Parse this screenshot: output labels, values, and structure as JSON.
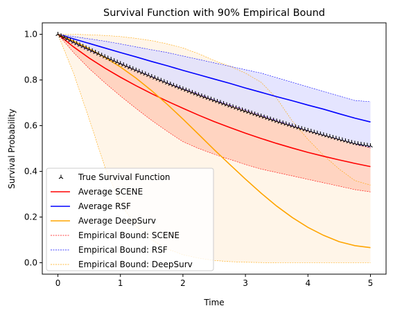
{
  "chart_data": {
    "type": "line",
    "title": "Survival Function with 90% Empirical Bound",
    "xlabel": "Time",
    "ylabel": "Survival Probability",
    "xlim": [
      -0.25,
      5.25
    ],
    "ylim": [
      -0.05,
      1.05
    ],
    "xticks": [
      "0",
      "1",
      "2",
      "3",
      "4",
      "5"
    ],
    "yticks": [
      "0.0",
      "0.2",
      "0.4",
      "0.6",
      "0.8",
      "1.0"
    ],
    "grid": false,
    "legend_position": "lower-left",
    "x": [
      0,
      0.25,
      0.5,
      0.75,
      1,
      1.25,
      1.5,
      1.75,
      2,
      2.25,
      2.5,
      2.75,
      3,
      3.25,
      3.5,
      3.75,
      4,
      4.25,
      4.5,
      4.75,
      5
    ],
    "series": [
      {
        "name": "True Survival Function",
        "style": "marker",
        "color": "#000000",
        "values": [
          1.0,
          0.966,
          0.934,
          0.902,
          0.872,
          0.843,
          0.815,
          0.787,
          0.761,
          0.735,
          0.711,
          0.687,
          0.664,
          0.642,
          0.62,
          0.599,
          0.579,
          0.56,
          0.541,
          0.523,
          0.512
        ]
      },
      {
        "name": "Average SCENE",
        "style": "solid",
        "color": "#ff0000",
        "values": [
          1.0,
          0.945,
          0.896,
          0.852,
          0.812,
          0.775,
          0.74,
          0.707,
          0.676,
          0.646,
          0.618,
          0.592,
          0.567,
          0.544,
          0.522,
          0.502,
          0.483,
          0.466,
          0.45,
          0.435,
          0.421
        ]
      },
      {
        "name": "Average RSF",
        "style": "solid",
        "color": "#0000ff",
        "values": [
          1.0,
          0.98,
          0.96,
          0.94,
          0.92,
          0.901,
          0.881,
          0.862,
          0.842,
          0.823,
          0.804,
          0.785,
          0.765,
          0.746,
          0.727,
          0.709,
          0.69,
          0.672,
          0.652,
          0.633,
          0.616
        ]
      },
      {
        "name": "Average DeepSurv",
        "style": "solid",
        "color": "#ffa500",
        "values": [
          1.0,
          0.97,
          0.937,
          0.899,
          0.857,
          0.808,
          0.753,
          0.693,
          0.629,
          0.562,
          0.495,
          0.43,
          0.366,
          0.305,
          0.248,
          0.198,
          0.155,
          0.12,
          0.092,
          0.075,
          0.066
        ]
      },
      {
        "name": "Empirical Bound: SCENE",
        "style": "band",
        "color": "#ff0000",
        "fill": "#ffc8b4",
        "lower": [
          1.0,
          0.92,
          0.85,
          0.788,
          0.73,
          0.675,
          0.623,
          0.575,
          0.53,
          0.5,
          0.475,
          0.452,
          0.43,
          0.41,
          0.395,
          0.38,
          0.365,
          0.35,
          0.335,
          0.32,
          0.31
        ],
        "upper": [
          1.0,
          0.962,
          0.93,
          0.9,
          0.872,
          0.843,
          0.815,
          0.787,
          0.762,
          0.738,
          0.712,
          0.69,
          0.668,
          0.645,
          0.622,
          0.6,
          0.578,
          0.558,
          0.54,
          0.52,
          0.502
        ]
      },
      {
        "name": "Empirical Bound: RSF",
        "style": "band",
        "color": "#0000ff",
        "fill": "#dcdcff",
        "lower": [
          1.0,
          0.962,
          0.93,
          0.9,
          0.872,
          0.843,
          0.815,
          0.787,
          0.762,
          0.738,
          0.712,
          0.69,
          0.668,
          0.645,
          0.622,
          0.6,
          0.578,
          0.558,
          0.54,
          0.52,
          0.505
        ],
        "upper": [
          1.0,
          0.99,
          0.98,
          0.97,
          0.958,
          0.945,
          0.932,
          0.92,
          0.905,
          0.89,
          0.875,
          0.86,
          0.845,
          0.83,
          0.81,
          0.79,
          0.77,
          0.75,
          0.73,
          0.71,
          0.705
        ]
      },
      {
        "name": "Empirical Bound: DeepSurv",
        "style": "band",
        "color": "#ffa500",
        "fill": "#fff2e0",
        "lower": [
          1.0,
          0.83,
          0.63,
          0.42,
          0.26,
          0.16,
          0.1,
          0.06,
          0.035,
          0.02,
          0.01,
          0.005,
          0.002,
          0.001,
          0.0,
          0.0,
          0.0,
          0.0,
          0.0,
          0.0,
          0.0
        ],
        "upper": [
          1.0,
          1.0,
          0.998,
          0.995,
          0.99,
          0.982,
          0.972,
          0.958,
          0.94,
          0.915,
          0.885,
          0.86,
          0.83,
          0.79,
          0.72,
          0.62,
          0.54,
          0.47,
          0.41,
          0.36,
          0.34
        ]
      }
    ],
    "legend": [
      {
        "label": "True Survival Function",
        "kind": "marker",
        "color": "#000000"
      },
      {
        "label": "Average SCENE",
        "kind": "solid",
        "color": "#ff0000"
      },
      {
        "label": "Average RSF",
        "kind": "solid",
        "color": "#0000ff"
      },
      {
        "label": "Average DeepSurv",
        "kind": "solid",
        "color": "#ffa500"
      },
      {
        "label": "Empirical Bound: SCENE",
        "kind": "dashed",
        "color": "#ff0000"
      },
      {
        "label": "Empirical Bound: RSF",
        "kind": "dashed",
        "color": "#0000ff"
      },
      {
        "label": "Empirical Bound: DeepSurv",
        "kind": "dashed",
        "color": "#ffa500"
      }
    ]
  }
}
